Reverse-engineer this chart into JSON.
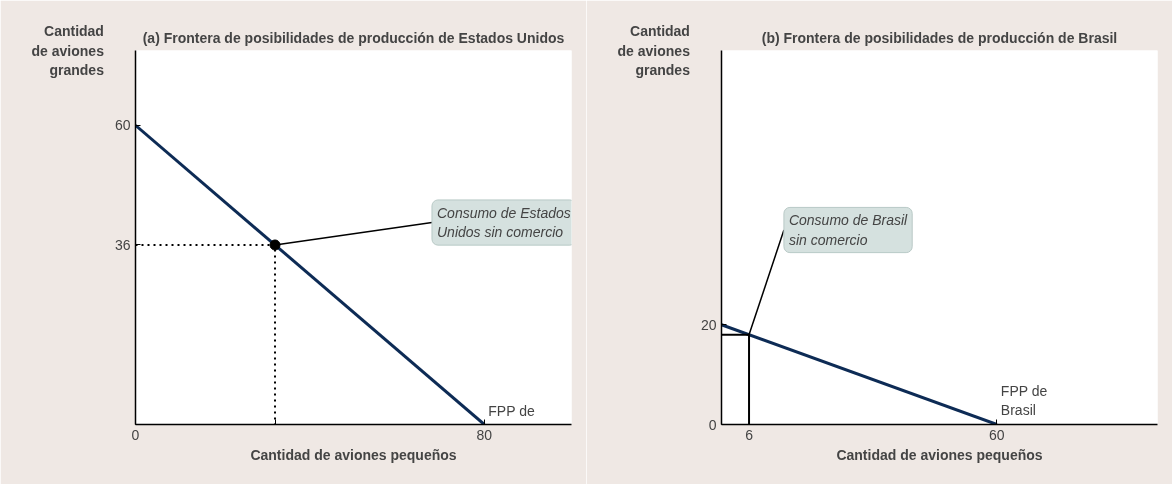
{
  "chart_data": [
    {
      "type": "line",
      "title": "(a) Frontera de posibilidades de producción de Estados Unidos",
      "xlabel": "Cantidad de aviones pequeños",
      "ylabel": "Cantidad de aviones grandes",
      "xlim": [
        0,
        100
      ],
      "ylim": [
        0,
        75
      ],
      "xticks": [
        0,
        {
          "value": 32,
          "label": null
        },
        80
      ],
      "yticks": [
        {
          "value": 0,
          "label": null
        },
        36,
        60
      ],
      "grid": false,
      "series": [
        {
          "type": "line",
          "color": "#0d2b55",
          "line_style": "solid",
          "x": [
            0,
            80
          ],
          "values": [
            60,
            0
          ]
        },
        {
          "type": "line",
          "color": "#000000",
          "line_style": "dotted",
          "x": [
            0,
            32,
            32
          ],
          "values": [
            36,
            36,
            0
          ]
        },
        {
          "type": "scatter",
          "color": "#000000",
          "marker": "circle",
          "x": [
            32
          ],
          "values": [
            36
          ]
        }
      ],
      "annotations": [
        {
          "text": "Consumo de Estados Unidos sin comercio",
          "x": 32,
          "y": 36
        },
        {
          "text": "FPP de",
          "x": 80,
          "y": 0
        }
      ]
    },
    {
      "type": "line",
      "title": "(b) Frontera de posibilidades de producción de Brasil",
      "xlabel": "Cantidad de aviones pequeños",
      "ylabel": "Cantidad de aviones grandes",
      "xlim": [
        0,
        95
      ],
      "ylim": [
        0,
        75
      ],
      "xticks": [
        {
          "value": 0,
          "label": null
        },
        6,
        60
      ],
      "yticks": [
        0,
        {
          "value": 18,
          "label": null
        },
        20
      ],
      "grid": false,
      "series": [
        {
          "type": "line",
          "color": "#0d2b55",
          "line_style": "solid",
          "x": [
            0,
            60
          ],
          "values": [
            20,
            0
          ]
        },
        {
          "type": "line",
          "color": "#000000",
          "line_style": "solid",
          "x": [
            0,
            6,
            6
          ],
          "values": [
            18,
            18,
            0
          ]
        }
      ],
      "annotations": [
        {
          "text": "Consumo de Brasil sin comercio",
          "x": 6,
          "y": 18
        },
        {
          "text": "FPP de Brasil",
          "x": 60,
          "y": 0
        }
      ]
    }
  ]
}
